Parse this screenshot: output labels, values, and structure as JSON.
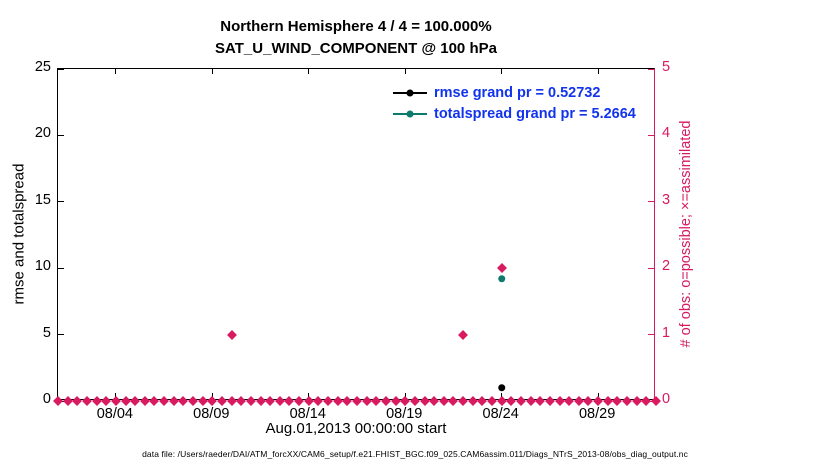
{
  "title": {
    "line1": "Northern Hemisphere 4 / 4 = 100.000%",
    "line2": "SAT_U_WIND_COMPONENT @ 100 hPa"
  },
  "legend": {
    "text_color": "#1133ee",
    "entries": [
      {
        "label": "rmse grand pr = 0.52732",
        "color": "#000000"
      },
      {
        "label": "totalspread grand pr = 5.2664",
        "color": "#0e7a6e"
      }
    ]
  },
  "axes": {
    "left": {
      "label": "rmse and totalspread",
      "ticks": [
        0,
        5,
        10,
        15,
        20,
        25
      ]
    },
    "right": {
      "label": "# of obs: o=possible; ×=assimilated",
      "ticks": [
        0,
        1,
        2,
        3,
        4,
        5
      ],
      "color": "#d81b60"
    },
    "x": {
      "label": "Aug.01,2013 00:00:00 start",
      "tick_labels": [
        "08/04",
        "08/09",
        "08/14",
        "08/19",
        "08/24",
        "08/29"
      ]
    }
  },
  "footer": "data file: /Users/raeder/DAI/ATM_forcXX/CAM6_setup/f.e21.FHIST_BGC.f09_025.CAM6assim.011/Diags_NTrS_2013-08/obs_diag_output.nc",
  "chart_data": {
    "type": "scatter",
    "title": "Northern Hemisphere 4 / 4 = 100.000% — SAT_U_WIND_COMPONENT @ 100 hPa",
    "xlabel": "Aug.01,2013 00:00:00 start",
    "ylabel_left": "rmse and totalspread",
    "ylabel_right": "# of obs: o=possible; ×=assimilated",
    "x_axis": {
      "start_day": 0,
      "end_day": 31,
      "tick_days": [
        3,
        8,
        13,
        18,
        23,
        28
      ],
      "tick_labels": [
        "08/04",
        "08/09",
        "08/14",
        "08/19",
        "08/24",
        "08/29"
      ],
      "units": "days since Aug.01,2013 00:00:00"
    },
    "left_axis": {
      "min": 0,
      "max": 25,
      "ticks": [
        0,
        5,
        10,
        15,
        20,
        25
      ]
    },
    "right_axis": {
      "min": 0,
      "max": 5,
      "ticks": [
        0,
        1,
        2,
        3,
        4,
        5
      ]
    },
    "grid": false,
    "legend_position": "top-center-inside",
    "stats": {
      "rmse_grand_pr": 0.52732,
      "totalspread_grand_pr": 5.2664
    },
    "series": [
      {
        "name": "num-obs-baseline",
        "axis": "right",
        "marker": "diamond",
        "color": "#d81b60",
        "points_gen": {
          "from": 0,
          "to": 31,
          "step": 0.5,
          "y": 0
        }
      },
      {
        "name": "num-obs-events",
        "axis": "right",
        "marker": "diamond",
        "color": "#d81b60",
        "points": [
          [
            9,
            1
          ],
          [
            21,
            1
          ],
          [
            23,
            2
          ]
        ]
      },
      {
        "name": "totalspread",
        "axis": "left",
        "marker": "circle",
        "color": "#0e7a6e",
        "points": [
          [
            23,
            9.2
          ]
        ]
      },
      {
        "name": "rmse",
        "axis": "left",
        "marker": "circle",
        "color": "#000000",
        "points": [
          [
            23,
            1.0
          ]
        ]
      }
    ]
  }
}
